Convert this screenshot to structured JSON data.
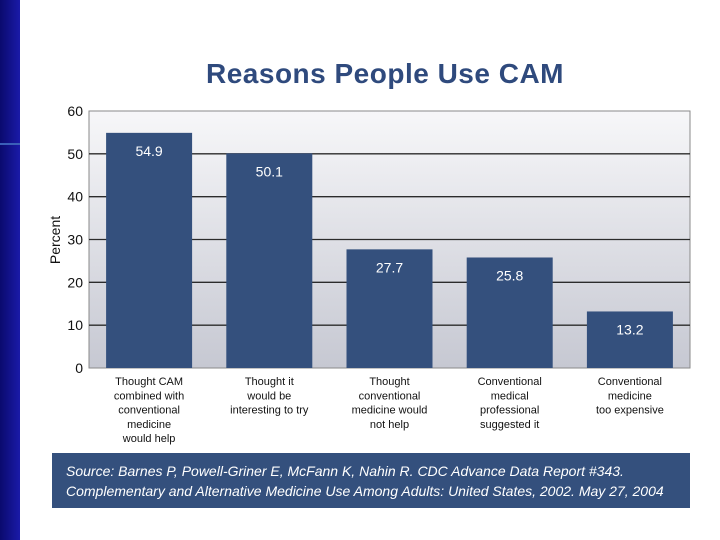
{
  "slide": {
    "title": "Reasons People Use CAM",
    "source_line1": "Source: Barnes P, Powell-Griner E, McFann K, Nahin R. CDC Advance Data Report #343.",
    "source_line2": "Complementary and Alternative Medicine Use Among Adults: United States, 2002. May 27, 2004"
  },
  "colors": {
    "bar": "#34507d",
    "title": "#2f4a7d",
    "grid": "#2b2b2b",
    "band": "#1414a0"
  },
  "chart_data": {
    "type": "bar",
    "title": "Reasons People Use CAM",
    "ylabel": "Percent",
    "xlabel": "",
    "ylim": [
      0,
      60
    ],
    "yticks": [
      0,
      10,
      20,
      30,
      40,
      50,
      60
    ],
    "grid": true,
    "categories": [
      [
        "Thought CAM",
        "combined with",
        "conventional",
        "medicine",
        "would help"
      ],
      [
        "Thought it",
        "would be",
        "interesting to try"
      ],
      [
        "Thought",
        "conventional",
        "medicine would",
        "not help"
      ],
      [
        "Conventional",
        "medical",
        "professional",
        "suggested it"
      ],
      [
        "Conventional",
        "medicine",
        "too expensive"
      ]
    ],
    "values": [
      54.9,
      50.1,
      27.7,
      25.8,
      13.2
    ],
    "value_labels": [
      "54.9",
      "50.1",
      "27.7",
      "25.8",
      "13.2"
    ]
  }
}
